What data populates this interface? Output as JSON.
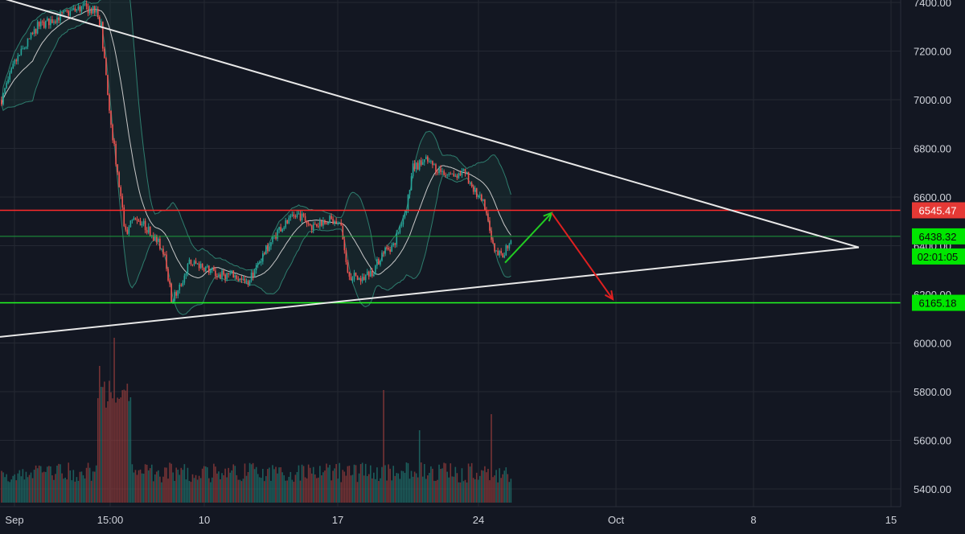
{
  "chart_data": {
    "type": "candlestick",
    "interval_label": "daily candles with Bollinger Bands, volume histogram",
    "x_ticks": [
      "Sep",
      "15:00",
      "10",
      "17",
      "24",
      "Oct",
      "8",
      "15"
    ],
    "y_ticks": [
      "7400.00",
      "7200.00",
      "7000.00",
      "6800.00",
      "6600.00",
      "6400.00",
      "6200.00",
      "6000.00",
      "5800.00",
      "5600.00",
      "5400.00"
    ],
    "y_range": [
      5350,
      7400
    ],
    "grid": true,
    "price_tags": [
      {
        "label": "6545.47",
        "value": 6545.47,
        "color": "#e53935"
      },
      {
        "label": "6438.32",
        "value": 6438.32,
        "color": "#00e600"
      },
      {
        "label": "02:01:05",
        "value": 6400,
        "color": "#00e600"
      },
      {
        "label": "6165.18",
        "value": 6165.18,
        "color": "#00e600"
      }
    ],
    "horizontal_lines": [
      {
        "name": "resistance",
        "value": 6545.47,
        "color": "#ff2a2a"
      },
      {
        "name": "current",
        "value": 6438.32,
        "color": "#1e9e3c"
      },
      {
        "name": "support",
        "value": 6165.18,
        "color": "#22ff22"
      }
    ],
    "trendlines": [
      {
        "name": "descending",
        "from": {
          "t": 0,
          "price": 7420
        },
        "to": {
          "t": 1.0,
          "price": 6393
        }
      },
      {
        "name": "ascending",
        "from": {
          "t": 0,
          "price": 6025
        },
        "to": {
          "t": 1.0,
          "price": 6393
        }
      }
    ],
    "arrows": [
      {
        "name": "up-arrow",
        "color": "#22cc22",
        "from": {
          "price": 6330
        },
        "to": {
          "price": 6535
        }
      },
      {
        "name": "down-arrow",
        "color": "#e02020",
        "from": {
          "price": 6535
        },
        "to": {
          "price": 6180
        }
      }
    ],
    "colors": {
      "background": "#131722",
      "grid": "#242833",
      "up": "#26a69a",
      "down": "#ef5350",
      "axis_text": "#d1d4dc"
    }
  }
}
